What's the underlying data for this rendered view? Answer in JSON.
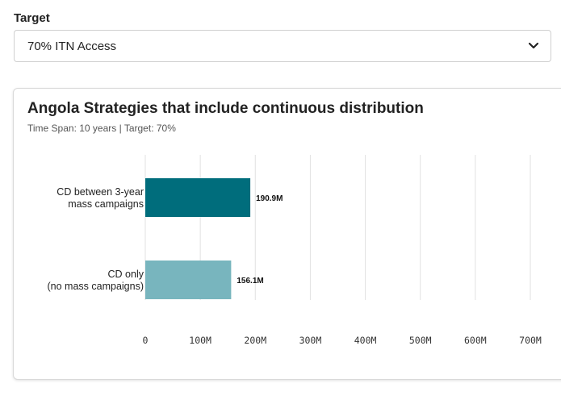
{
  "target": {
    "label": "Target",
    "selected": "70% ITN Access"
  },
  "chart_data": {
    "type": "bar",
    "orientation": "horizontal",
    "title": "Angola Strategies that include continuous distribution",
    "subtitle": "Time Span: 10 years | Target: 70%",
    "categories": [
      [
        "CD between 3-year",
        "mass campaigns"
      ],
      [
        "CD only",
        "(no mass campaigns)"
      ]
    ],
    "values": [
      190.9,
      156.1
    ],
    "value_labels": [
      "190.9M",
      "156.1M"
    ],
    "colors": [
      "#006d7c",
      "#78b5be"
    ],
    "xlim": [
      0,
      700
    ],
    "xticks": [
      0,
      100,
      200,
      300,
      400,
      500,
      600,
      700
    ],
    "xtick_labels": [
      "0",
      "100M",
      "200M",
      "300M",
      "400M",
      "500M",
      "600M",
      "700M"
    ],
    "grid": true
  }
}
